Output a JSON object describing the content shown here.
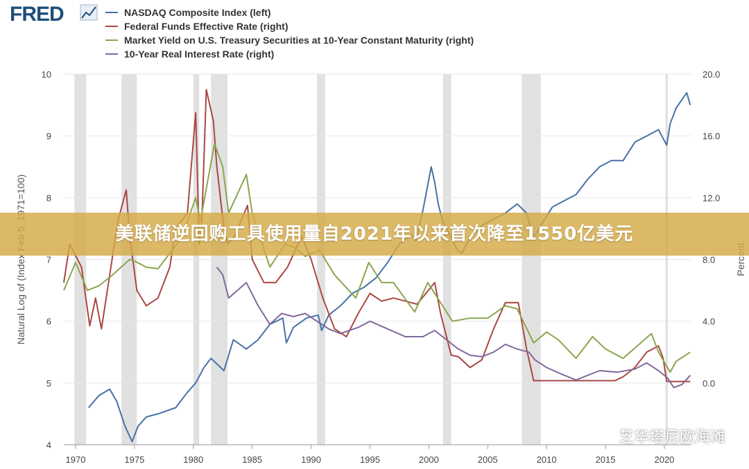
{
  "logo": {
    "text": "FRED",
    "icon": "line-chart-icon"
  },
  "banner": {
    "text": "美联储逆回购工具使用量自2021年以来首次降至1550亿美元"
  },
  "watermark": {
    "text": "芝华塔尼欧海滩",
    "icon": "wechat-icon"
  },
  "chart_data": {
    "type": "line",
    "x_range": [
      1969,
      2022.3
    ],
    "x_ticks": [
      "1970",
      "1975",
      "1980",
      "1985",
      "1990",
      "1995",
      "2000",
      "2005",
      "2010",
      "2015",
      "2020"
    ],
    "y_left": {
      "label": "Natural Log of (Index Feb 5, 1971=100)",
      "range": [
        4,
        10
      ],
      "ticks": [
        "4",
        "5",
        "6",
        "7",
        "8",
        "9",
        "10"
      ]
    },
    "y_right": {
      "label": "Percent",
      "range": [
        -4,
        20
      ],
      "ticks": [
        "0.0",
        "4.0",
        "8.0",
        "12.0",
        "16.0",
        "20.0"
      ]
    },
    "grid": true,
    "legend_position": "top-left",
    "recessions": [
      [
        1969.9,
        1970.9
      ],
      [
        1973.9,
        1975.2
      ],
      [
        1980.0,
        1980.5
      ],
      [
        1981.5,
        1982.9
      ],
      [
        1990.5,
        1991.2
      ],
      [
        2001.2,
        2001.9
      ],
      [
        2007.9,
        2009.5
      ],
      [
        2020.1,
        2020.3
      ]
    ],
    "series": [
      {
        "name": "NASDAQ Composite Index (left)",
        "axis": "left",
        "color": "#4572a7",
        "x": [
          1971.1,
          1972,
          1972.9,
          1973.5,
          1974.2,
          1974.8,
          1975.3,
          1976,
          1977,
          1978.5,
          1979.5,
          1980.2,
          1980.9,
          1981.5,
          1982.6,
          1983.4,
          1984.5,
          1985.5,
          1986.5,
          1987.6,
          1987.9,
          1988.5,
          1989.6,
          1990.6,
          1990.9,
          1991.5,
          1992.5,
          1993.5,
          1994.5,
          1995.5,
          1996.5,
          1997.5,
          1998.5,
          1998.9,
          1999.5,
          2000.2,
          2000.5,
          2000.8,
          2001.2,
          2001.8,
          2002.4,
          2002.8,
          2003.5,
          2004.5,
          2005.5,
          2006.5,
          2007.5,
          2008.3,
          2008.9,
          2009.5,
          2010.5,
          2011.5,
          2012.5,
          2013.5,
          2014.5,
          2015.5,
          2016.5,
          2017.5,
          2018.5,
          2019.5,
          2020.2,
          2020.5,
          2021,
          2021.9,
          2022.2
        ],
        "values": [
          4.6,
          4.8,
          4.9,
          4.7,
          4.3,
          4.05,
          4.3,
          4.45,
          4.5,
          4.6,
          4.85,
          5.0,
          5.25,
          5.4,
          5.2,
          5.7,
          5.55,
          5.7,
          5.95,
          6.05,
          5.65,
          5.9,
          6.05,
          6.1,
          5.85,
          6.1,
          6.25,
          6.45,
          6.55,
          6.7,
          6.95,
          7.25,
          7.4,
          7.3,
          7.8,
          8.5,
          8.25,
          7.9,
          7.6,
          7.4,
          7.15,
          7.1,
          7.35,
          7.55,
          7.65,
          7.75,
          7.9,
          7.75,
          7.35,
          7.55,
          7.85,
          7.95,
          8.05,
          8.3,
          8.5,
          8.6,
          8.6,
          8.9,
          9.0,
          9.1,
          8.85,
          9.2,
          9.45,
          9.7,
          9.5
        ]
      },
      {
        "name": "Federal Funds Effective Rate (right)",
        "axis": "right",
        "color": "#aa4643",
        "x": [
          1969,
          1969.5,
          1970.5,
          1971.2,
          1971.7,
          1972.2,
          1973,
          1973.6,
          1974.3,
          1974.6,
          1975.2,
          1976,
          1977,
          1977.5,
          1978,
          1978.5,
          1979.5,
          1980.2,
          1980.5,
          1980.7,
          1981.1,
          1981.4,
          1981.7,
          1982,
          1982.6,
          1982.9,
          1983.5,
          1984.6,
          1985,
          1986,
          1987,
          1988,
          1989.2,
          1990,
          1991,
          1992,
          1993,
          1994,
          1995,
          1996,
          1997,
          1998,
          1999,
          2000.5,
          2001,
          2001.9,
          2002.5,
          2003.5,
          2004.5,
          2005.5,
          2006.5,
          2007.6,
          2008.3,
          2008.9,
          2009.5,
          2012,
          2015.8,
          2016.5,
          2017.5,
          2018.5,
          2019.5,
          2019.9,
          2020.2,
          2021,
          2022.2
        ],
        "values": [
          6.5,
          9.0,
          7.5,
          3.7,
          5.5,
          3.5,
          7.5,
          10.5,
          12.5,
          9.5,
          6.0,
          5.0,
          5.5,
          6.5,
          7.5,
          10.0,
          11.0,
          17.5,
          9.0,
          10.0,
          19.0,
          18.0,
          17.0,
          14.0,
          10.0,
          9.0,
          9.5,
          11.5,
          8.0,
          6.5,
          6.5,
          7.5,
          9.5,
          8.0,
          5.5,
          3.5,
          3.0,
          4.5,
          5.8,
          5.3,
          5.5,
          5.3,
          5.1,
          6.5,
          4.5,
          1.8,
          1.7,
          1.0,
          1.5,
          3.5,
          5.2,
          5.2,
          2.2,
          0.15,
          0.15,
          0.15,
          0.15,
          0.4,
          1.0,
          2.0,
          2.4,
          1.6,
          0.1,
          0.1,
          0.1
        ]
      },
      {
        "name": "Market Yield on U.S. Treasury Securities at 10-Year Constant Maturity (right)",
        "axis": "right",
        "color": "#89a54e",
        "x": [
          1969,
          1970,
          1971,
          1972,
          1973,
          1974.6,
          1975,
          1976,
          1977,
          1978,
          1979,
          1980.2,
          1980.6,
          1981.8,
          1982.5,
          1983,
          1984.5,
          1985,
          1986.5,
          1987.8,
          1988.5,
          1989.5,
          1990.7,
          1992,
          1993.8,
          1994.9,
          1996,
          1997,
          1998.8,
          1999.9,
          2001,
          2002,
          2003.5,
          2005,
          2006.5,
          2007.5,
          2008.9,
          2010,
          2011,
          2012.5,
          2013.9,
          2015,
          2016.5,
          2018.9,
          2019.5,
          2020.5,
          2021,
          2022.2
        ],
        "values": [
          6.0,
          7.8,
          6.0,
          6.3,
          6.9,
          8.0,
          7.9,
          7.5,
          7.4,
          8.4,
          9.4,
          12.0,
          10.5,
          15.5,
          14.0,
          11.0,
          13.5,
          11.0,
          7.5,
          9.0,
          8.8,
          8.2,
          8.6,
          7.0,
          5.5,
          7.8,
          6.5,
          6.5,
          4.6,
          6.5,
          5.2,
          4.0,
          4.2,
          4.2,
          5.0,
          4.8,
          2.6,
          3.3,
          2.8,
          1.6,
          3.0,
          2.2,
          1.6,
          3.2,
          2.0,
          0.7,
          1.4,
          2.0
        ]
      },
      {
        "name": "10-Year Real Interest Rate (right)",
        "axis": "right",
        "color": "#80699b",
        "x": [
          1982.0,
          1982.5,
          1983,
          1984.5,
          1985.5,
          1986.5,
          1987.5,
          1988.5,
          1989.5,
          1990.5,
          1991.5,
          1992.5,
          1994,
          1995,
          1996.5,
          1998,
          1999.5,
          2000.5,
          2001.5,
          2002.5,
          2003.5,
          2004.5,
          2005.5,
          2006.5,
          2007.5,
          2008.5,
          2009,
          2010,
          2011.5,
          2012.5,
          2013.5,
          2014.5,
          2016,
          2017.5,
          2018.5,
          2019.5,
          2020.3,
          2020.8,
          2021.5,
          2022.2
        ],
        "values": [
          7.5,
          7.0,
          5.5,
          6.5,
          5.0,
          3.8,
          4.5,
          4.3,
          4.5,
          4.0,
          3.5,
          3.2,
          3.6,
          4.0,
          3.5,
          3.0,
          3.0,
          3.4,
          2.8,
          2.2,
          1.8,
          1.7,
          2.0,
          2.5,
          2.2,
          2.0,
          1.5,
          1.0,
          0.5,
          0.2,
          0.5,
          0.8,
          0.7,
          0.9,
          1.3,
          0.8,
          0.3,
          -0.3,
          -0.1,
          0.5
        ]
      }
    ]
  }
}
